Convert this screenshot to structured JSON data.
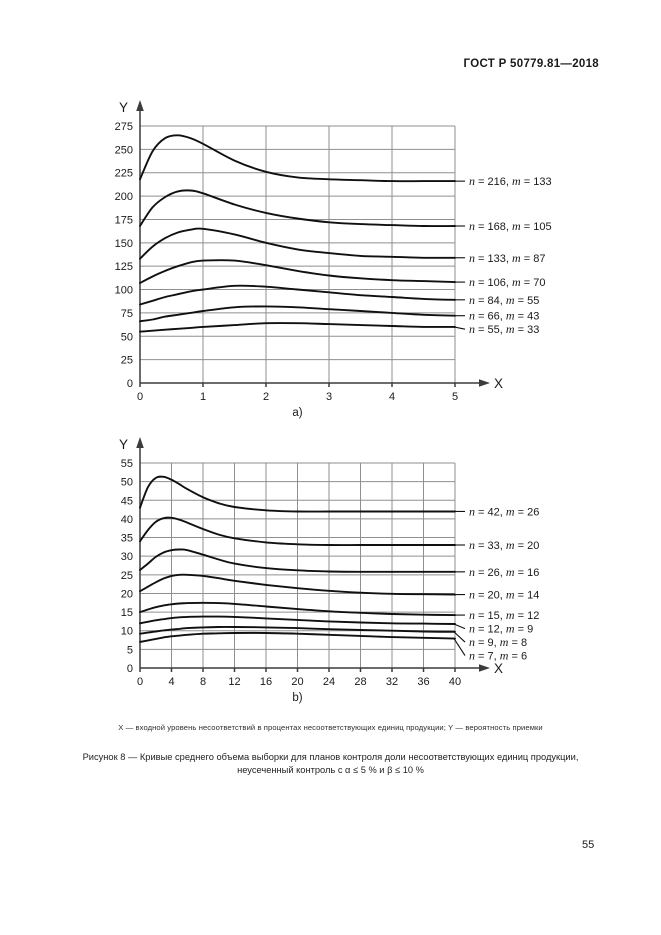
{
  "page": {
    "header": "ГОСТ Р 50779.81—2018",
    "axis_note": "X — входной уровень несоответствий в процентах несоответствующих единиц продукции; Y — вероятность приемки",
    "figure_caption_line1": "Рисунок 8 — Кривые среднего объема выборки для планов контроля доли несоответствующих единиц продукции,",
    "figure_caption_line2": "неусеченный контроль с α ≤ 5 % и β ≤ 10 %",
    "page_number": "55"
  },
  "chart_data": [
    {
      "type": "line",
      "sublabel": "a)",
      "xlabel": "X",
      "ylabel": "Y",
      "xlim": [
        0,
        5
      ],
      "ylim": [
        0,
        275
      ],
      "xticks": [
        0,
        1,
        2,
        3,
        4,
        5
      ],
      "yticks": [
        0,
        25,
        50,
        75,
        100,
        125,
        150,
        175,
        200,
        225,
        250,
        275
      ],
      "grid": true,
      "legend_position": "right-labels",
      "x": [
        0,
        0.2,
        0.4,
        0.6,
        0.8,
        1,
        1.5,
        2,
        2.5,
        3,
        3.5,
        4,
        4.5,
        5
      ],
      "series": [
        {
          "name": "n = 216, m = 133",
          "n": 216,
          "m": 133,
          "y": [
            218,
            248,
            262,
            265,
            262,
            256,
            238,
            226,
            220,
            218,
            217,
            216,
            216,
            216
          ]
        },
        {
          "name": "n = 168, m = 105",
          "n": 168,
          "m": 105,
          "y": [
            168,
            188,
            199,
            205,
            206,
            203,
            191,
            182,
            176,
            172,
            170,
            169,
            168,
            168
          ]
        },
        {
          "name": "n = 133, m = 87",
          "n": 133,
          "m": 87,
          "y": [
            133,
            146,
            155,
            161,
            164,
            165,
            159,
            150,
            143,
            139,
            136,
            135,
            134,
            134
          ]
        },
        {
          "name": "n = 106, m = 70",
          "n": 106,
          "m": 70,
          "y": [
            107,
            114,
            120,
            125,
            129,
            131,
            131,
            126,
            120,
            115,
            112,
            110,
            109,
            108
          ]
        },
        {
          "name": "n = 84, m = 55",
          "n": 84,
          "m": 55,
          "y": [
            84,
            88,
            92,
            95,
            98,
            100,
            104,
            103,
            100,
            97,
            94,
            92,
            90,
            89
          ]
        },
        {
          "name": "n = 66, m = 43",
          "n": 66,
          "m": 43,
          "y": [
            66,
            68,
            71,
            73,
            75,
            77,
            81,
            82,
            81,
            79,
            77,
            75,
            73,
            72
          ]
        },
        {
          "name": "n = 55, m = 33",
          "n": 55,
          "m": 33,
          "y": [
            55,
            56,
            57,
            58,
            59,
            60,
            62,
            64,
            64,
            63,
            62,
            61,
            60,
            60
          ]
        }
      ]
    },
    {
      "type": "line",
      "sublabel": "b)",
      "xlabel": "X",
      "ylabel": "Y",
      "xlim": [
        0,
        40
      ],
      "ylim": [
        0,
        55
      ],
      "xticks": [
        0,
        4,
        8,
        12,
        16,
        20,
        24,
        28,
        32,
        36,
        40
      ],
      "yticks": [
        0,
        5,
        10,
        15,
        20,
        25,
        30,
        35,
        40,
        45,
        50,
        55
      ],
      "grid": true,
      "legend_position": "right-labels",
      "x": [
        0,
        1,
        2,
        3,
        4,
        5,
        6,
        8,
        10,
        12,
        16,
        20,
        24,
        28,
        32,
        36,
        40
      ],
      "series": [
        {
          "name": "n = 42, m = 26",
          "n": 42,
          "m": 26,
          "y": [
            43,
            48.5,
            51,
            51.3,
            50.5,
            49.3,
            48,
            45.8,
            44.2,
            43.2,
            42.3,
            42,
            42,
            42,
            42,
            42,
            42
          ]
        },
        {
          "name": "n = 33, m = 20",
          "n": 33,
          "m": 20,
          "y": [
            34,
            37,
            39.2,
            40.2,
            40.3,
            39.8,
            39,
            37.3,
            35.8,
            34.8,
            33.7,
            33.2,
            33,
            33,
            33,
            33,
            33
          ]
        },
        {
          "name": "n = 26, m = 16",
          "n": 26,
          "m": 16,
          "y": [
            26.3,
            28,
            29.8,
            31,
            31.6,
            31.8,
            31.6,
            30.4,
            29.1,
            28,
            26.8,
            26.2,
            25.9,
            25.8,
            25.8,
            25.8,
            25.8
          ]
        },
        {
          "name": "n = 20, m = 14",
          "n": 20,
          "m": 14,
          "y": [
            20.6,
            21.8,
            23,
            24,
            24.7,
            25,
            25,
            24.7,
            24.1,
            23.4,
            22.3,
            21.4,
            20.7,
            20.2,
            19.9,
            19.8,
            19.7
          ]
        },
        {
          "name": "n = 15, m = 12",
          "n": 15,
          "m": 12,
          "y": [
            15,
            15.7,
            16.3,
            16.8,
            17.1,
            17.3,
            17.4,
            17.5,
            17.4,
            17.2,
            16.5,
            15.8,
            15.2,
            14.8,
            14.5,
            14.3,
            14.2
          ]
        },
        {
          "name": "n = 12, m = 9",
          "n": 12,
          "m": 9,
          "y": [
            12,
            12.4,
            12.8,
            13.1,
            13.4,
            13.6,
            13.7,
            13.8,
            13.8,
            13.7,
            13.3,
            12.9,
            12.5,
            12.2,
            12,
            11.9,
            11.8
          ]
        },
        {
          "name": "n = 9, m = 8",
          "n": 9,
          "m": 8,
          "y": [
            9.2,
            9.5,
            9.8,
            10.1,
            10.3,
            10.5,
            10.7,
            10.9,
            11,
            11,
            10.9,
            10.7,
            10.4,
            10.2,
            10,
            9.8,
            9.7
          ]
        },
        {
          "name": "n = 7, m = 6",
          "n": 7,
          "m": 6,
          "y": [
            7,
            7.4,
            7.8,
            8.2,
            8.5,
            8.7,
            8.9,
            9.2,
            9.3,
            9.4,
            9.4,
            9.2,
            8.9,
            8.6,
            8.3,
            8.1,
            7.9
          ]
        }
      ]
    }
  ]
}
